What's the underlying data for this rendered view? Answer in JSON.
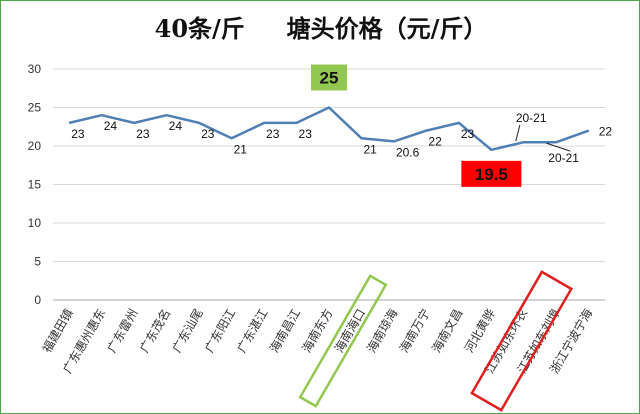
{
  "chart_data": {
    "type": "line",
    "title": "40条/斤     塘头价格（元/斤）",
    "xlabel": "",
    "ylabel": "",
    "ylim": [
      0,
      30
    ],
    "yticks": [
      0,
      5,
      10,
      15,
      20,
      25,
      30
    ],
    "grid": true,
    "legend": "none",
    "categories": [
      "福建田镇",
      "广东惠州惠东",
      "广东雷州",
      "广东茂名",
      "广东汕尾",
      "广东阳江",
      "广东湛江",
      "海南昌江",
      "海南东方",
      "海南海口",
      "海南琼海",
      "海南万宁",
      "海南文昌",
      "河北黄骅",
      "江苏如东环农",
      "江苏如东刘埠",
      "浙江宁波宁海"
    ],
    "series": [
      {
        "values": [
          23,
          24,
          23,
          24,
          23,
          21,
          23,
          23,
          25,
          21,
          20.6,
          22,
          23,
          19.5,
          20.5,
          20.5,
          22
        ]
      }
    ],
    "data_labels": [
      "23",
      "24",
      "23",
      "24",
      "23",
      "21",
      "23",
      "23",
      "25",
      "21",
      "20.6",
      "22",
      "23",
      "19.5",
      "20-21",
      "20-21",
      "22"
    ],
    "line_color": "#4f7fb4",
    "highlight_high": {
      "index": 8,
      "text": "25",
      "color": "#92c850"
    },
    "highlight_low": {
      "index": 13,
      "text": "19.5",
      "color": "#ff0000"
    },
    "annotation_boxes": [
      {
        "categories": [
          "海南东方"
        ],
        "color": "#92c850"
      },
      {
        "categories": [
          "河北黄骅",
          "江苏如东环农"
        ],
        "color": "#e02020"
      }
    ]
  }
}
